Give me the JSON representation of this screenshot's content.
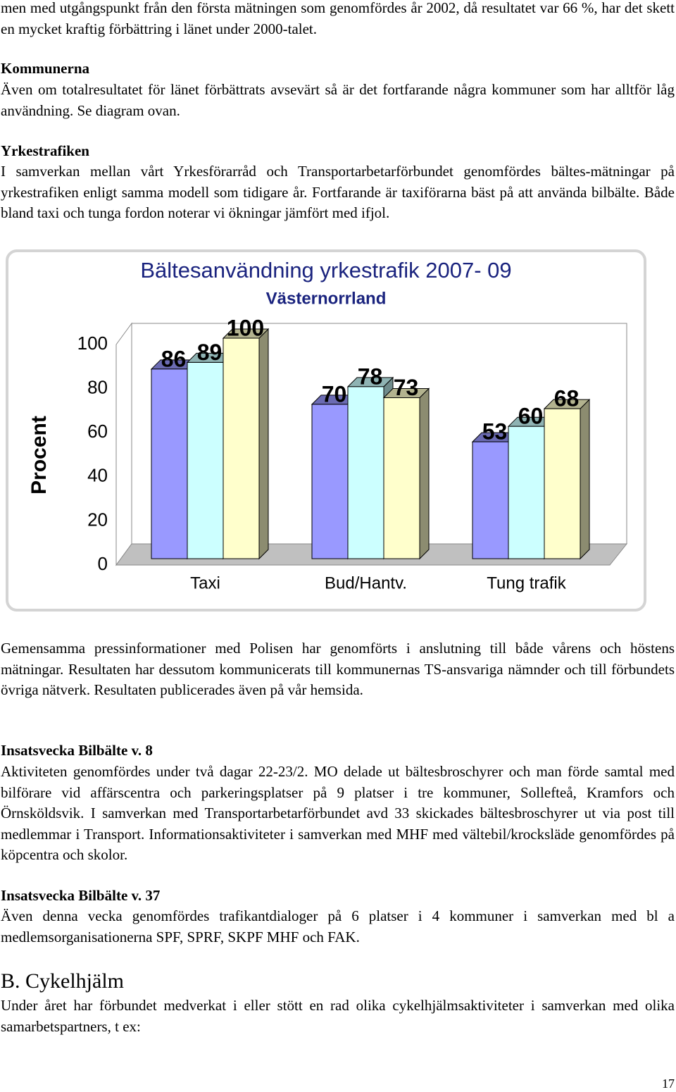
{
  "intro_text": "men med utgångspunkt från den första mätningen som genomfördes år 2002, då resultatet var 66 %, har det skett en mycket kraftig förbättring i länet under 2000-talet.",
  "kommunerna": {
    "heading": "Kommunerna",
    "text": "Även om totalresultatet för länet förbättrats avsevärt så är det fortfarande några kommuner som har alltför låg användning. Se diagram ovan."
  },
  "yrkestrafiken": {
    "heading": "Yrkestrafiken",
    "text": "I samverkan mellan vårt Yrkesförarråd och Transportarbetarförbundet genomfördes bältes-mätningar på yrkestrafiken enligt samma modell som tidigare år. Fortfarande är taxiförarna bäst på att använda bilbälte. Både bland taxi och tunga fordon noterar vi ökningar jämfört med ifjol."
  },
  "chart_data": {
    "type": "bar",
    "title": "Bältesanvändning yrkestrafik 2007- 09",
    "subtitle": "Västernorrland",
    "y_label": "Procent",
    "categories": [
      "Taxi",
      "Bud/Hantv.",
      "Tung trafik"
    ],
    "series": [
      {
        "color": "#9999ff",
        "values": [
          86,
          70,
          53
        ]
      },
      {
        "color": "#ccffff",
        "values": [
          89,
          78,
          60
        ]
      },
      {
        "color": "#ffffcc",
        "values": [
          100,
          73,
          68
        ]
      }
    ],
    "ylim": [
      0,
      100
    ],
    "yticks": [
      0,
      20,
      40,
      60,
      80,
      100
    ],
    "grid": false
  },
  "after_chart_text": "Gemensamma pressinformationer med Polisen har genomförts i anslutning till både vårens och höstens mätningar. Resultaten har dessutom kommunicerats till kommunernas TS-ansvariga nämnder och till förbundets övriga nätverk. Resultaten publicerades även på vår hemsida.",
  "v8": {
    "heading": "Insatsvecka Bilbälte v. 8",
    "text": "Aktiviteten genomfördes under två dagar 22-23/2. MO delade ut bältesbroschyrer och man förde samtal med bilförare vid affärscentra och parkeringsplatser på 9 platser i tre kommuner, Sollefteå, Kramfors och Örnsköldsvik. I samverkan med Transportarbetarförbundet avd 33 skickades bältesbroschyrer ut via post till medlemmar i Transport. Informationsaktiviteter i samverkan med MHF med vältebil/krocksläde genomfördes på köpcentra och skolor."
  },
  "v37": {
    "heading": "Insatsvecka Bilbälte v. 37",
    "text": "Även denna vecka genomfördes trafikantdialoger på 6 platser i 4 kommuner i samverkan med bl a medlemsorganisationerna SPF, SPRF, SKPF MHF och FAK."
  },
  "cykelhjalm": {
    "heading": "B. Cykelhjälm",
    "text": "Under året har förbundet medverkat i eller stött en rad olika cykelhjälmsaktiviteter i samverkan med olika samarbetspartners, t ex:"
  },
  "page_number": "17"
}
